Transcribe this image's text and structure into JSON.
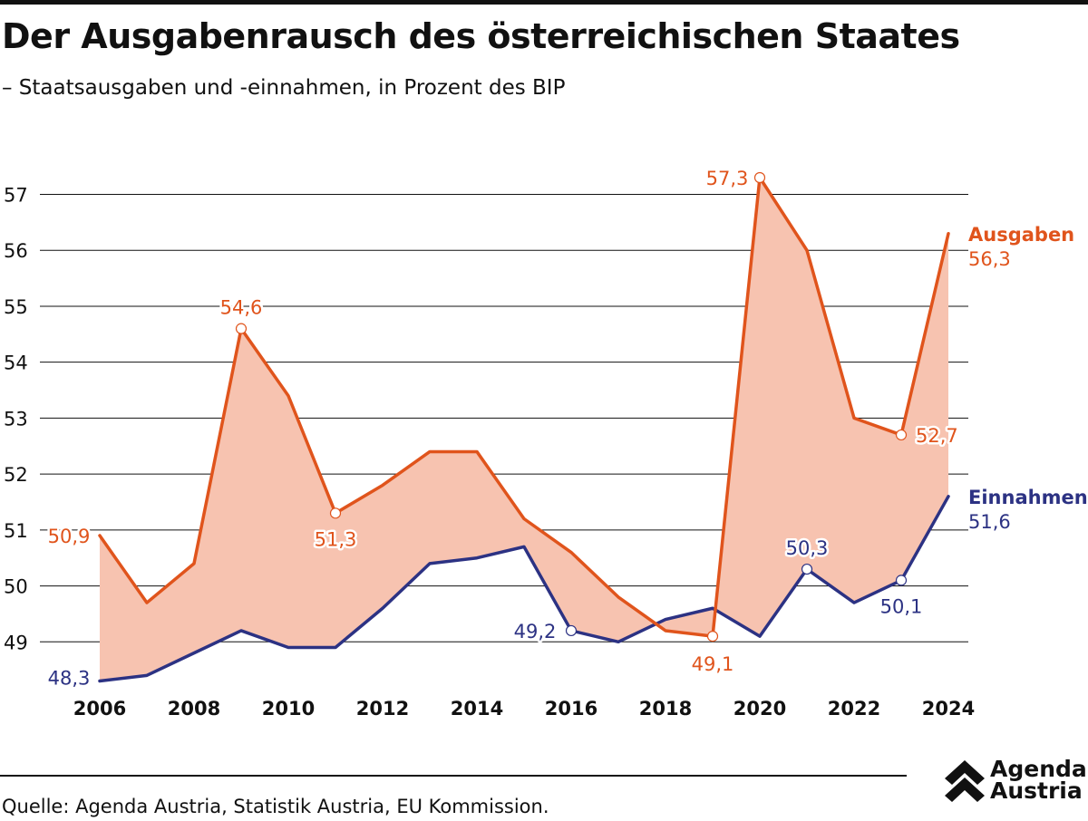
{
  "header": {
    "title": "Der Ausgabenrausch des österreichischen Staates",
    "subtitle": "– Staatsausgaben und -einnahmen, in Prozent des BIP"
  },
  "footer": {
    "source": "Quelle: Agenda Austria, Statistik Austria, EU Kommission.",
    "brand_line1": "Agenda",
    "brand_line2": "Austria",
    "brand_icon": "double-chevron-up-icon"
  },
  "colors": {
    "ausgaben": "#e0541c",
    "einnahmen": "#2c3283",
    "fill": "#f7c3b0",
    "grid": "#111111"
  },
  "chart_data": {
    "type": "line",
    "x": [
      2006,
      2007,
      2008,
      2009,
      2010,
      2011,
      2012,
      2013,
      2014,
      2015,
      2016,
      2017,
      2018,
      2019,
      2020,
      2021,
      2022,
      2023,
      2024
    ],
    "x_tick_labels": [
      "2006",
      "2008",
      "2010",
      "2012",
      "2014",
      "2016",
      "2018",
      "2020",
      "2022",
      "2024"
    ],
    "y_tick_labels": [
      "49",
      "50",
      "51",
      "52",
      "53",
      "54",
      "55",
      "56",
      "57"
    ],
    "ylim": [
      48.3,
      57.3
    ],
    "grid": "horizontal",
    "fill_between": true,
    "series": [
      {
        "name": "Ausgaben",
        "end_value_label": "56,3",
        "values": [
          50.9,
          49.7,
          50.4,
          54.6,
          53.4,
          51.3,
          51.8,
          52.4,
          52.4,
          51.2,
          50.6,
          49.8,
          49.2,
          49.1,
          57.3,
          56.0,
          53.0,
          52.7,
          56.3
        ],
        "annotations": [
          {
            "year": 2006,
            "label": "50,9",
            "marker": false
          },
          {
            "year": 2009,
            "label": "54,6",
            "marker": true
          },
          {
            "year": 2011,
            "label": "51,3",
            "marker": true
          },
          {
            "year": 2019,
            "label": "49,1",
            "marker": true
          },
          {
            "year": 2020,
            "label": "57,3",
            "marker": true
          },
          {
            "year": 2023,
            "label": "52,7",
            "marker": true
          }
        ]
      },
      {
        "name": "Einnahmen",
        "end_value_label": "51,6",
        "values": [
          48.3,
          48.4,
          48.8,
          49.2,
          48.9,
          48.9,
          49.6,
          50.4,
          50.5,
          50.7,
          49.2,
          49.0,
          49.4,
          49.6,
          49.1,
          50.3,
          49.7,
          50.1,
          51.6
        ],
        "annotations": [
          {
            "year": 2006,
            "label": "48,3",
            "marker": false
          },
          {
            "year": 2016,
            "label": "49,2",
            "marker": true
          },
          {
            "year": 2021,
            "label": "50,3",
            "marker": true
          },
          {
            "year": 2023,
            "label": "50,1",
            "marker": true
          }
        ]
      }
    ]
  }
}
